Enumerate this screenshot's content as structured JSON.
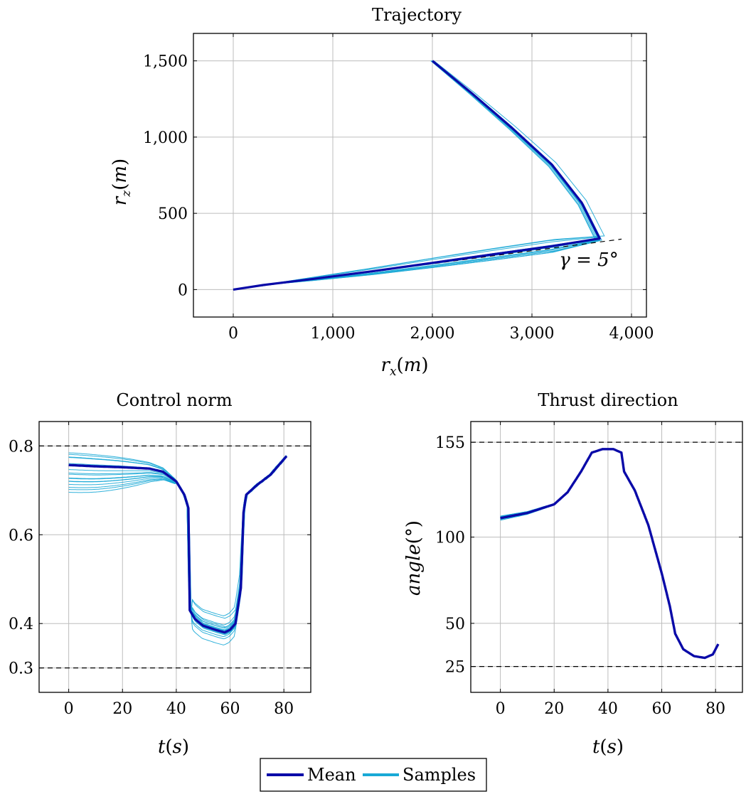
{
  "legend": {
    "mean_label": "Mean",
    "samples_label": "Samples"
  },
  "colors": {
    "mean": "#0a0aa8",
    "samples": "#19a9d6",
    "grid": "#bdbdbd",
    "bound": "#000000"
  },
  "chart_data": [
    {
      "id": "trajectory",
      "type": "line",
      "title": "Trajectory",
      "xlabel": "r_x(m)",
      "ylabel": "r_z(m)",
      "xlim": [
        -400,
        4150
      ],
      "ylim": [
        -180,
        1680
      ],
      "xticks": [
        0,
        1000,
        2000,
        3000,
        4000
      ],
      "xtick_labels": [
        "0",
        "1,000",
        "2,000",
        "3,000",
        "4,000"
      ],
      "yticks": [
        0,
        500,
        1000,
        1500
      ],
      "ytick_labels": [
        "0",
        "500",
        "1,000",
        "1,500"
      ],
      "grid": true,
      "annotation": "γ = 5°",
      "glide_slope_deg": 5,
      "series": [
        {
          "name": "Mean",
          "x": [
            2000,
            2400,
            2800,
            3200,
            3500,
            3680,
            3200,
            2600,
            2000,
            1400,
            800,
            300,
            0
          ],
          "y": [
            1500,
            1285,
            1060,
            820,
            570,
            335,
            285,
            230,
            175,
            120,
            70,
            30,
            0
          ]
        },
        {
          "name": "Samples",
          "spread_x": 35,
          "spread_y": 30,
          "count": 16
        }
      ]
    },
    {
      "id": "control_norm",
      "type": "line",
      "title": "Control norm",
      "xlabel": "t(s)",
      "ylabel": "",
      "xlim": [
        -11,
        90
      ],
      "ylim": [
        0.245,
        0.855
      ],
      "xticks": [
        0,
        20,
        40,
        60,
        80
      ],
      "yticks": [
        0.3,
        0.4,
        0.6,
        0.8
      ],
      "ytick_labels": [
        "0.3",
        "0.4",
        "0.6",
        "0.8"
      ],
      "bounds": [
        0.3,
        0.8
      ],
      "grid": true,
      "series": [
        {
          "name": "Mean",
          "x": [
            0,
            10,
            20,
            30,
            35,
            40,
            43,
            44.5,
            45,
            47,
            50,
            55,
            58,
            60,
            62,
            64,
            65,
            66,
            70,
            75,
            81
          ],
          "y": [
            0.757,
            0.754,
            0.752,
            0.749,
            0.742,
            0.72,
            0.69,
            0.66,
            0.43,
            0.41,
            0.395,
            0.385,
            0.38,
            0.386,
            0.4,
            0.48,
            0.65,
            0.69,
            0.712,
            0.735,
            0.777
          ]
        },
        {
          "name": "Samples",
          "start_range": [
            0.695,
            0.785
          ],
          "dip_range": [
            0.355,
            0.425
          ],
          "count": 16
        }
      ]
    },
    {
      "id": "thrust_direction",
      "type": "line",
      "title": "Thrust direction",
      "xlabel": "t(s)",
      "ylabel": "angle(°)",
      "xlim": [
        -11,
        90
      ],
      "ylim": [
        10,
        167
      ],
      "xticks": [
        0,
        20,
        40,
        60,
        80
      ],
      "yticks": [
        25,
        50,
        100,
        155
      ],
      "ytick_labels": [
        "25",
        "50",
        "100",
        "155"
      ],
      "bounds": [
        25,
        155
      ],
      "grid": true,
      "series": [
        {
          "name": "Mean",
          "x": [
            0,
            10,
            20,
            25,
            30,
            34,
            38,
            42,
            45,
            46,
            50,
            55,
            60,
            63,
            65,
            68,
            72,
            76,
            79,
            81
          ],
          "y": [
            111,
            114,
            119,
            126,
            138,
            149,
            151,
            151,
            149,
            138,
            127,
            107,
            79,
            60,
            44,
            35,
            31,
            30,
            32,
            38
          ]
        },
        {
          "name": "Samples",
          "spread": 1.2,
          "count": 10
        }
      ]
    }
  ]
}
